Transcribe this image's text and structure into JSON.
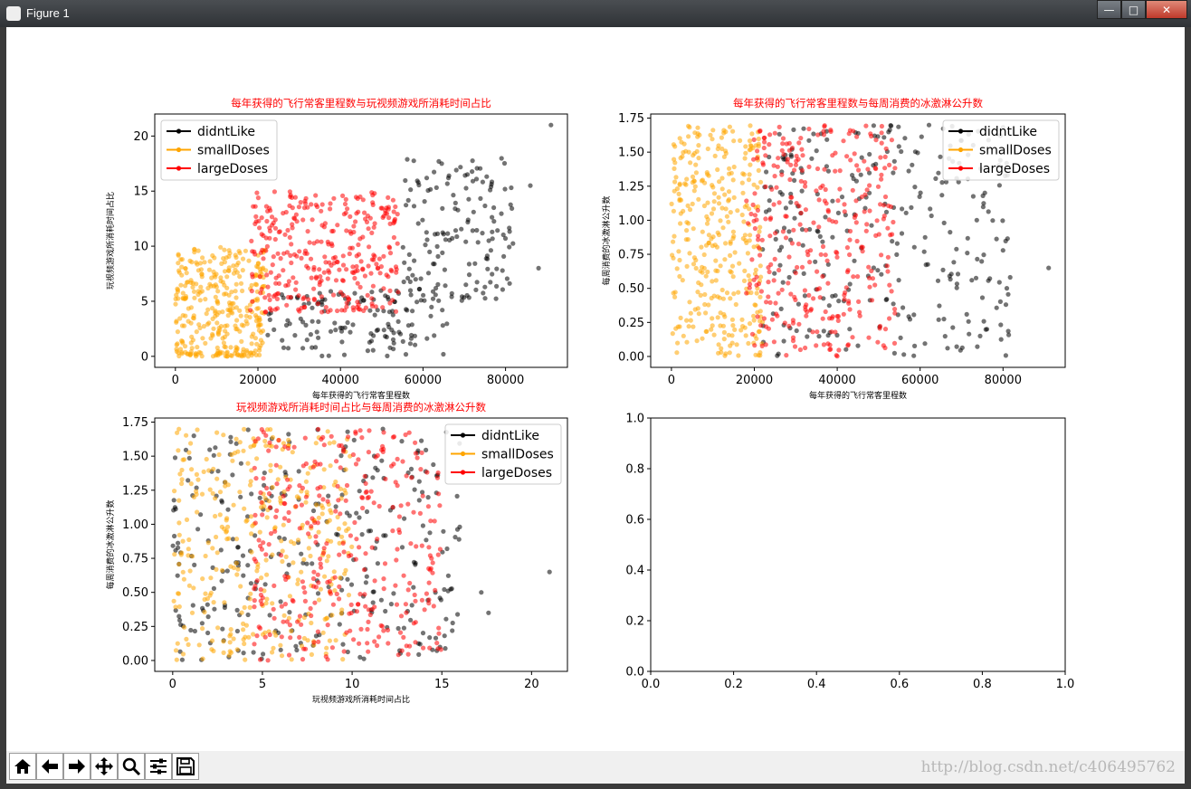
{
  "window": {
    "title": "Figure 1",
    "buttons": {
      "minimize": "—",
      "maximize": "□",
      "close": "✕"
    }
  },
  "toolbar": {
    "items": [
      {
        "icon": "home-icon"
      },
      {
        "icon": "back-icon"
      },
      {
        "icon": "forward-icon"
      },
      {
        "icon": "pan-icon"
      },
      {
        "icon": "zoom-icon"
      },
      {
        "icon": "configure-subplots-icon"
      },
      {
        "icon": "save-icon"
      }
    ]
  },
  "watermark": "http://blog.csdn.net/c406495762",
  "colors": {
    "didntLike": "#000000",
    "smallDoses": "#ffa500",
    "largeDoses": "#ff0000",
    "title": "#ff0000"
  },
  "legend_labels": [
    "didntLike",
    "smallDoses",
    "largeDoses"
  ],
  "chart_data": [
    {
      "type": "scatter",
      "title": "每年获得的飞行常客里程数与玩视频游戏所消耗时间占比",
      "xlabel": "每年获得的飞行常客里程数",
      "ylabel": "玩视频游戏所消耗时间占比",
      "xlim": [
        -5000,
        95000
      ],
      "ylim": [
        -1,
        22
      ],
      "xticks": [
        0,
        20000,
        40000,
        60000,
        80000
      ],
      "xtick_labels": [
        "0",
        "20000",
        "40000",
        "60000",
        "80000"
      ],
      "yticks": [
        0,
        5,
        10,
        15,
        20
      ],
      "ytick_labels": [
        "0",
        "5",
        "10",
        "15",
        "20"
      ],
      "legend": "upper left",
      "series": [
        {
          "name": "didntLike",
          "clusters": [
            {
              "x": [
                22000,
                66000
              ],
              "y": [
                0,
                6
              ],
              "n": 130
            },
            {
              "x": [
                55000,
                82000
              ],
              "y": [
                5,
                18
              ],
              "n": 150
            }
          ],
          "outliers": [
            [
              91000,
              21
            ],
            [
              86000,
              15.5
            ],
            [
              88000,
              8
            ]
          ]
        },
        {
          "name": "smallDoses",
          "clusters": [
            {
              "x": [
                0,
                22000
              ],
              "y": [
                0,
                10
              ],
              "n": 300
            },
            {
              "x": [
                0,
                20000
              ],
              "y": [
                0,
                0.4
              ],
              "n": 40
            }
          ]
        },
        {
          "name": "largeDoses",
          "clusters": [
            {
              "x": [
                18000,
                54000
              ],
              "y": [
                4,
                15
              ],
              "n": 330
            }
          ]
        }
      ]
    },
    {
      "type": "scatter",
      "title": "每年获得的飞行常客里程数与每周消费的冰激淋公升数",
      "xlabel": "每年获得的飞行常客里程数",
      "ylabel": "每周消费的冰激淋公升数",
      "xlim": [
        -5000,
        95000
      ],
      "ylim": [
        -0.08,
        1.78
      ],
      "xticks": [
        0,
        20000,
        40000,
        60000,
        80000
      ],
      "xtick_labels": [
        "0",
        "20000",
        "40000",
        "60000",
        "80000"
      ],
      "yticks": [
        0,
        0.25,
        0.5,
        0.75,
        1.0,
        1.25,
        1.5,
        1.75
      ],
      "ytick_labels": [
        "0.00",
        "0.25",
        "0.50",
        "0.75",
        "1.00",
        "1.25",
        "1.50",
        "1.75"
      ],
      "legend": "upper right",
      "series": [
        {
          "name": "didntLike",
          "clusters": [
            {
              "x": [
                22000,
                82000
              ],
              "y": [
                0,
                1.7
              ],
              "n": 280
            }
          ],
          "outliers": [
            [
              91000,
              0.65
            ]
          ]
        },
        {
          "name": "smallDoses",
          "clusters": [
            {
              "x": [
                0,
                22000
              ],
              "y": [
                0,
                1.7
              ],
              "n": 340
            }
          ]
        },
        {
          "name": "largeDoses",
          "clusters": [
            {
              "x": [
                18000,
                54000
              ],
              "y": [
                0,
                1.7
              ],
              "n": 330
            }
          ]
        }
      ]
    },
    {
      "type": "scatter",
      "title": "玩视频游戏所消耗时间占比与每周消费的冰激淋公升数",
      "xlabel": "玩视频游戏所消耗时间占比",
      "ylabel": "每周消费的冰激淋公升数",
      "xlim": [
        -1,
        22
      ],
      "ylim": [
        -0.08,
        1.78
      ],
      "xticks": [
        0,
        5,
        10,
        15,
        20
      ],
      "xtick_labels": [
        "0",
        "5",
        "10",
        "15",
        "20"
      ],
      "yticks": [
        0,
        0.25,
        0.5,
        0.75,
        1.0,
        1.25,
        1.5,
        1.75
      ],
      "ytick_labels": [
        "0.00",
        "0.25",
        "0.50",
        "0.75",
        "1.00",
        "1.25",
        "1.50",
        "1.75"
      ],
      "legend": "upper right",
      "series": [
        {
          "name": "didntLike",
          "clusters": [
            {
              "x": [
                0,
                16
              ],
              "y": [
                0,
                1.7
              ],
              "n": 280
            }
          ],
          "outliers": [
            [
              21,
              0.65
            ],
            [
              17.6,
              0.35
            ],
            [
              17.2,
              0.5
            ],
            [
              16,
              0.98
            ]
          ]
        },
        {
          "name": "smallDoses",
          "clusters": [
            {
              "x": [
                0,
                10
              ],
              "y": [
                0,
                1.7
              ],
              "n": 340
            }
          ]
        },
        {
          "name": "largeDoses",
          "clusters": [
            {
              "x": [
                4.5,
                15
              ],
              "y": [
                0,
                1.7
              ],
              "n": 330
            }
          ]
        }
      ]
    },
    {
      "type": "scatter",
      "title": "",
      "xlim": [
        0,
        1
      ],
      "ylim": [
        0,
        1
      ],
      "xticks": [
        0,
        0.2,
        0.4,
        0.6,
        0.8,
        1.0
      ],
      "xtick_labels": [
        "0.0",
        "0.2",
        "0.4",
        "0.6",
        "0.8",
        "1.0"
      ],
      "yticks": [
        0,
        0.2,
        0.4,
        0.6,
        0.8,
        1.0
      ],
      "ytick_labels": [
        "0.0",
        "0.2",
        "0.4",
        "0.6",
        "0.8",
        "1.0"
      ],
      "series": []
    }
  ]
}
